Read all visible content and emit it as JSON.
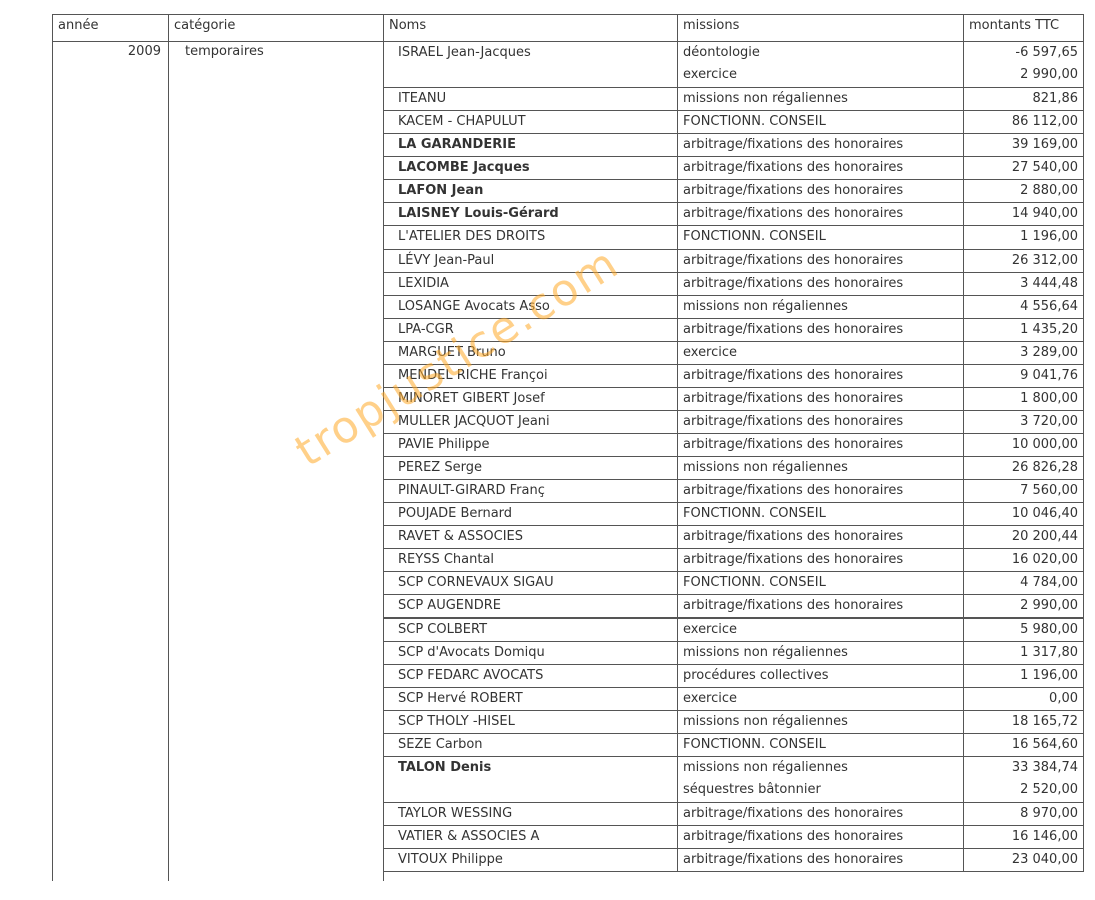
{
  "table": {
    "header": [
      "année",
      "catégorie",
      "Noms",
      "missions",
      "montants TTC"
    ],
    "year": "2009",
    "category": "temporaires",
    "entries": [
      {
        "name": "ISRAEL Jean-Jacques",
        "missions": [
          {
            "mission": "déontologie",
            "amount": "-6 597,65"
          },
          {
            "mission": "exercice",
            "amount": "2 990,00"
          }
        ]
      },
      {
        "name": "ITEANU",
        "missions": [
          {
            "mission": "missions non régaliennes",
            "amount": "821,86"
          }
        ]
      },
      {
        "name": "KACEM - CHAPULUT",
        "missions": [
          {
            "mission": "FONCTIONN. CONSEIL",
            "amount": "86 112,00"
          }
        ]
      },
      {
        "name": "LA GARANDERIE",
        "missions": [
          {
            "mission": "arbitrage/fixations des honoraires",
            "amount": "39 169,00"
          }
        ]
      },
      {
        "name": "LACOMBE Jacques",
        "missions": [
          {
            "mission": "arbitrage/fixations des honoraires",
            "amount": "27 540,00"
          }
        ]
      },
      {
        "name": "LAFON Jean",
        "missions": [
          {
            "mission": "arbitrage/fixations des honoraires",
            "amount": "2 880,00"
          }
        ]
      },
      {
        "name": "LAISNEY Louis-Gérard",
        "missions": [
          {
            "mission": "arbitrage/fixations des honoraires",
            "amount": "14 940,00"
          }
        ]
      },
      {
        "name": "L'ATELIER DES DROITS",
        "missions": [
          {
            "mission": "FONCTIONN. CONSEIL",
            "amount": "1 196,00"
          }
        ]
      },
      {
        "name": "LÉVY Jean-Paul",
        "missions": [
          {
            "mission": "arbitrage/fixations des honoraires",
            "amount": "26 312,00"
          }
        ]
      },
      {
        "name": "LEXIDIA",
        "missions": [
          {
            "mission": "arbitrage/fixations des honoraires",
            "amount": "3 444,48"
          }
        ]
      },
      {
        "name": "LOSANGE Avocats Asso",
        "missions": [
          {
            "mission": "missions non régaliennes",
            "amount": "4 556,64"
          }
        ]
      },
      {
        "name": "LPA-CGR",
        "missions": [
          {
            "mission": "arbitrage/fixations des honoraires",
            "amount": "1 435,20"
          }
        ]
      },
      {
        "name": "MARGUET Bruno",
        "missions": [
          {
            "mission": "exercice",
            "amount": "3 289,00"
          }
        ]
      },
      {
        "name": "MENDEL RICHE Françoi",
        "missions": [
          {
            "mission": "arbitrage/fixations des honoraires",
            "amount": "9 041,76"
          }
        ]
      },
      {
        "name": "MINORET GIBERT Josef",
        "missions": [
          {
            "mission": "arbitrage/fixations des honoraires",
            "amount": "1 800,00"
          }
        ]
      },
      {
        "name": "MULLER JACQUOT Jeani",
        "missions": [
          {
            "mission": "arbitrage/fixations des honoraires",
            "amount": "3 720,00"
          }
        ]
      },
      {
        "name": "PAVIE Philippe",
        "missions": [
          {
            "mission": "arbitrage/fixations des honoraires",
            "amount": "10 000,00"
          }
        ]
      },
      {
        "name": "PEREZ Serge",
        "missions": [
          {
            "mission": "missions non régaliennes",
            "amount": "26 826,28"
          }
        ]
      },
      {
        "name": "PINAULT-GIRARD Franç",
        "missions": [
          {
            "mission": "arbitrage/fixations des honoraires",
            "amount": "7 560,00"
          }
        ]
      },
      {
        "name": "POUJADE Bernard",
        "missions": [
          {
            "mission": "FONCTIONN. CONSEIL",
            "amount": "10 046,40"
          }
        ]
      },
      {
        "name": "RAVET & ASSOCIES",
        "missions": [
          {
            "mission": "arbitrage/fixations des honoraires",
            "amount": "20 200,44"
          }
        ]
      },
      {
        "name": "REYSS Chantal",
        "missions": [
          {
            "mission": "arbitrage/fixations des honoraires",
            "amount": "16 020,00"
          }
        ]
      },
      {
        "name": "SCP CORNEVAUX SIGAU",
        "missions": [
          {
            "mission": "FONCTIONN. CONSEIL",
            "amount": "4 784,00"
          }
        ]
      },
      {
        "name": "SCP AUGENDRE",
        "missions": [
          {
            "mission": "arbitrage/fixations des honoraires",
            "amount": "2 990,00"
          }
        ]
      },
      {
        "name": "SCP COLBERT",
        "missions": [
          {
            "mission": "exercice",
            "amount": "5 980,00"
          }
        ]
      },
      {
        "name": "SCP d'Avocats Domiqu",
        "missions": [
          {
            "mission": "missions non régaliennes",
            "amount": "1 317,80"
          }
        ]
      },
      {
        "name": "SCP FEDARC AVOCATS",
        "missions": [
          {
            "mission": "procédures collectives",
            "amount": "1 196,00"
          }
        ]
      },
      {
        "name": "SCP Hervé ROBERT",
        "missions": [
          {
            "mission": "exercice",
            "amount": "0,00"
          }
        ]
      },
      {
        "name": "SCP THOLY -HISEL",
        "missions": [
          {
            "mission": "missions non régaliennes",
            "amount": "18 165,72"
          }
        ]
      },
      {
        "name": "SEZE Carbon",
        "missions": [
          {
            "mission": "FONCTIONN. CONSEIL",
            "amount": "16 564,60"
          }
        ]
      },
      {
        "name": "TALON Denis",
        "missions": [
          {
            "mission": "missions non régaliennes",
            "amount": "33 384,74"
          },
          {
            "mission": "séquestres bâtonnier",
            "amount": "2 520,00"
          }
        ]
      },
      {
        "name": "TAYLOR WESSING",
        "missions": [
          {
            "mission": "arbitrage/fixations des honoraires",
            "amount": "8 970,00"
          }
        ]
      },
      {
        "name": "VATIER & ASSOCIES A",
        "missions": [
          {
            "mission": "arbitrage/fixations des honoraires",
            "amount": "16 146,00"
          }
        ]
      },
      {
        "name": "VITOUX Philippe",
        "missions": [
          {
            "mission": "arbitrage/fixations des honoraires",
            "amount": "23 040,00"
          }
        ]
      }
    ]
  },
  "watermark": "tropjustice.com"
}
